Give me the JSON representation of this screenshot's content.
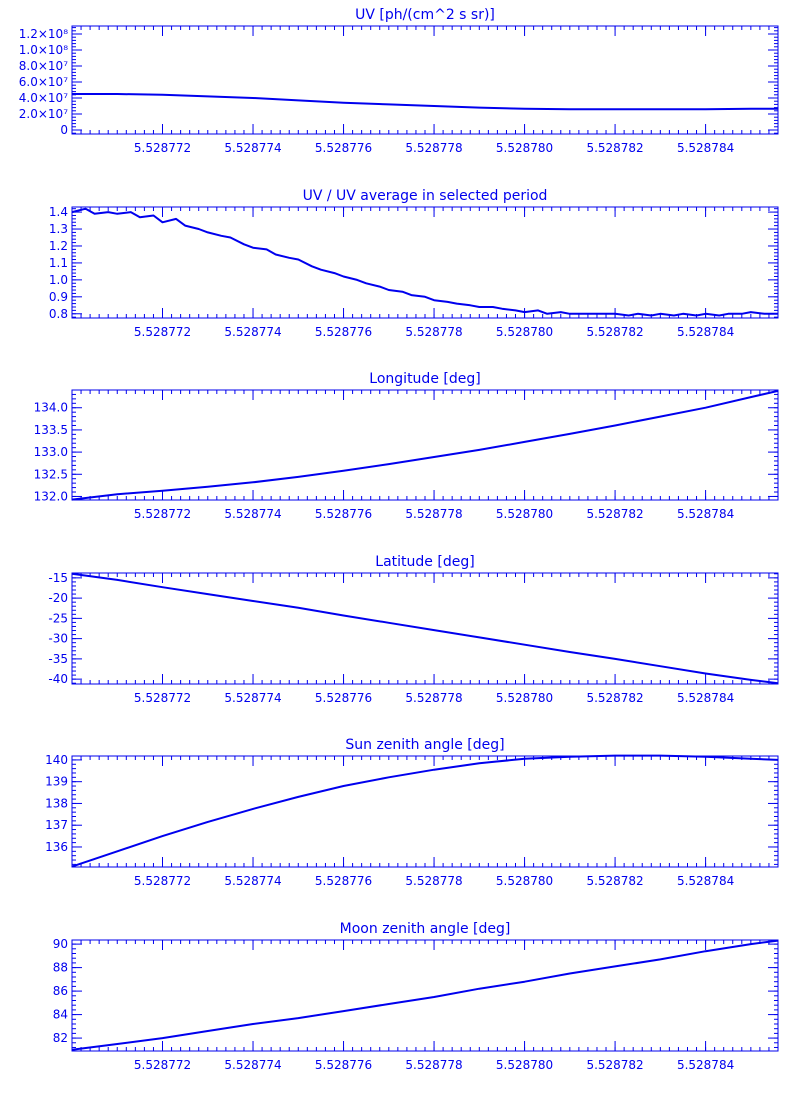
{
  "colors": {
    "ink": "#0000ee",
    "background": "#ffffff"
  },
  "x_ticks": [
    "5.528772",
    "5.528774",
    "5.528776",
    "5.528778",
    "5.528780",
    "5.528782",
    "5.528784"
  ],
  "chart_data": [
    {
      "type": "line",
      "title": "UV [ph/(cm^2 s sr)]",
      "xlim": [
        5.52877,
        5.5287856
      ],
      "ylim": [
        -5000000,
        130000000
      ],
      "yticks": [
        0,
        20000000,
        40000000,
        60000000,
        80000000,
        100000000,
        120000000
      ],
      "ytick_labels": [
        "0",
        "2.0×10⁷",
        "4.0×10⁷",
        "6.0×10⁷",
        "8.0×10⁷",
        "1.0×10⁸",
        "1.2×10⁸"
      ],
      "series": [
        {
          "x": [
            5.52877,
            5.528771,
            5.528772,
            5.528773,
            5.528774,
            5.528775,
            5.528776,
            5.528777,
            5.528778,
            5.528779,
            5.52878,
            5.528781,
            5.528782,
            5.528783,
            5.528784,
            5.528785,
            5.5287856
          ],
          "y": [
            45000000,
            45000000,
            44000000,
            42000000,
            40000000,
            37000000,
            34000000,
            32000000,
            30000000,
            28000000,
            26500000,
            26000000,
            26000000,
            26000000,
            26000000,
            26500000,
            26500000
          ]
        }
      ]
    },
    {
      "type": "line",
      "title": "UV / UV average in selected period",
      "xlim": [
        5.52877,
        5.5287856
      ],
      "ylim": [
        0.775,
        1.43
      ],
      "yticks": [
        0.8,
        0.9,
        1.0,
        1.1,
        1.2,
        1.3,
        1.4
      ],
      "ytick_labels": [
        "0.8",
        "0.9",
        "1.0",
        "1.1",
        "1.2",
        "1.3",
        "1.4"
      ],
      "series": [
        {
          "x": [
            5.52877,
            5.5287703,
            5.5287705,
            5.5287708,
            5.528771,
            5.5287713,
            5.5287715,
            5.5287718,
            5.528772,
            5.5287723,
            5.5287725,
            5.5287728,
            5.528773,
            5.5287733,
            5.5287735,
            5.5287738,
            5.528774,
            5.5287743,
            5.5287745,
            5.5287748,
            5.528775,
            5.5287753,
            5.5287755,
            5.5287758,
            5.528776,
            5.5287763,
            5.5287765,
            5.5287768,
            5.528777,
            5.5287773,
            5.5287775,
            5.5287778,
            5.528778,
            5.5287783,
            5.5287785,
            5.5287788,
            5.528779,
            5.5287793,
            5.5287795,
            5.5287798,
            5.52878,
            5.5287803,
            5.5287805,
            5.5287808,
            5.528781,
            5.5287813,
            5.5287815,
            5.5287818,
            5.528782,
            5.5287823,
            5.5287825,
            5.5287828,
            5.528783,
            5.5287833,
            5.5287835,
            5.5287838,
            5.528784,
            5.5287843,
            5.5287845,
            5.5287848,
            5.528785,
            5.5287853,
            5.5287856
          ],
          "y": [
            1.4,
            1.42,
            1.39,
            1.4,
            1.39,
            1.4,
            1.37,
            1.38,
            1.34,
            1.36,
            1.32,
            1.3,
            1.28,
            1.26,
            1.25,
            1.21,
            1.19,
            1.18,
            1.15,
            1.13,
            1.12,
            1.08,
            1.06,
            1.04,
            1.02,
            1.0,
            0.98,
            0.96,
            0.94,
            0.93,
            0.91,
            0.9,
            0.88,
            0.87,
            0.86,
            0.85,
            0.84,
            0.84,
            0.83,
            0.82,
            0.81,
            0.82,
            0.8,
            0.81,
            0.8,
            0.8,
            0.8,
            0.8,
            0.8,
            0.79,
            0.8,
            0.79,
            0.8,
            0.79,
            0.8,
            0.79,
            0.8,
            0.79,
            0.8,
            0.8,
            0.81,
            0.8,
            0.8
          ]
        }
      ]
    },
    {
      "type": "line",
      "title": "Longitude [deg]",
      "xlim": [
        5.52877,
        5.5287856
      ],
      "ylim": [
        131.92,
        134.4
      ],
      "yticks": [
        132.0,
        132.5,
        133.0,
        133.5,
        134.0
      ],
      "ytick_labels": [
        "132.0",
        "132.5",
        "133.0",
        "133.5",
        "134.0"
      ],
      "series": [
        {
          "x": [
            5.52877,
            5.528771,
            5.528772,
            5.528773,
            5.528774,
            5.528775,
            5.528776,
            5.528777,
            5.528778,
            5.528779,
            5.52878,
            5.528781,
            5.528782,
            5.528783,
            5.528784,
            5.528785,
            5.5287856
          ],
          "y": [
            131.93,
            132.05,
            132.13,
            132.22,
            132.32,
            132.44,
            132.58,
            132.73,
            132.89,
            133.05,
            133.23,
            133.41,
            133.6,
            133.8,
            134.0,
            134.24,
            134.38
          ]
        }
      ]
    },
    {
      "type": "line",
      "title": "Latitude [deg]",
      "xlim": [
        5.52877,
        5.5287856
      ],
      "ylim": [
        -41.2,
        -13.8
      ],
      "yticks": [
        -40,
        -35,
        -30,
        -25,
        -20,
        -15
      ],
      "ytick_labels": [
        "-40",
        "-35",
        "-30",
        "-25",
        "-20",
        "-15"
      ],
      "series": [
        {
          "x": [
            5.52877,
            5.528771,
            5.528772,
            5.528773,
            5.528774,
            5.528775,
            5.528776,
            5.528777,
            5.528778,
            5.528779,
            5.52878,
            5.528781,
            5.528782,
            5.528783,
            5.528784,
            5.528785,
            5.5287856
          ],
          "y": [
            -14.0,
            -15.5,
            -17.3,
            -19.0,
            -20.7,
            -22.4,
            -24.3,
            -26.1,
            -27.9,
            -29.7,
            -31.5,
            -33.3,
            -35.0,
            -36.8,
            -38.6,
            -40.2,
            -41.0
          ]
        }
      ]
    },
    {
      "type": "line",
      "title": "Sun zenith angle [deg]",
      "xlim": [
        5.52877,
        5.5287856
      ],
      "ylim": [
        135.08,
        140.18
      ],
      "yticks": [
        136,
        137,
        138,
        139,
        140
      ],
      "ytick_labels": [
        "136",
        "137",
        "138",
        "139",
        "140"
      ],
      "series": [
        {
          "x": [
            5.52877,
            5.528771,
            5.528772,
            5.528773,
            5.528774,
            5.528775,
            5.528776,
            5.528777,
            5.528778,
            5.528779,
            5.52878,
            5.528781,
            5.528782,
            5.528783,
            5.528784,
            5.528785,
            5.5287856
          ],
          "y": [
            135.1,
            135.8,
            136.5,
            137.15,
            137.75,
            138.3,
            138.8,
            139.2,
            139.55,
            139.85,
            140.05,
            140.15,
            140.2,
            140.2,
            140.15,
            140.05,
            140.0
          ]
        }
      ]
    },
    {
      "type": "line",
      "title": "Moon zenith angle [deg]",
      "xlim": [
        5.52877,
        5.5287856
      ],
      "ylim": [
        80.9,
        90.35
      ],
      "yticks": [
        82,
        84,
        86,
        88,
        90
      ],
      "ytick_labels": [
        "82",
        "84",
        "86",
        "88",
        "90"
      ],
      "series": [
        {
          "x": [
            5.52877,
            5.528771,
            5.528772,
            5.528773,
            5.528774,
            5.528775,
            5.528776,
            5.528777,
            5.528778,
            5.528779,
            5.52878,
            5.528781,
            5.528782,
            5.528783,
            5.528784,
            5.528785,
            5.5287856
          ],
          "y": [
            81.0,
            81.5,
            82.0,
            82.6,
            83.2,
            83.7,
            84.3,
            84.9,
            85.5,
            86.2,
            86.8,
            87.5,
            88.1,
            88.7,
            89.4,
            90.0,
            90.3
          ]
        }
      ]
    }
  ]
}
